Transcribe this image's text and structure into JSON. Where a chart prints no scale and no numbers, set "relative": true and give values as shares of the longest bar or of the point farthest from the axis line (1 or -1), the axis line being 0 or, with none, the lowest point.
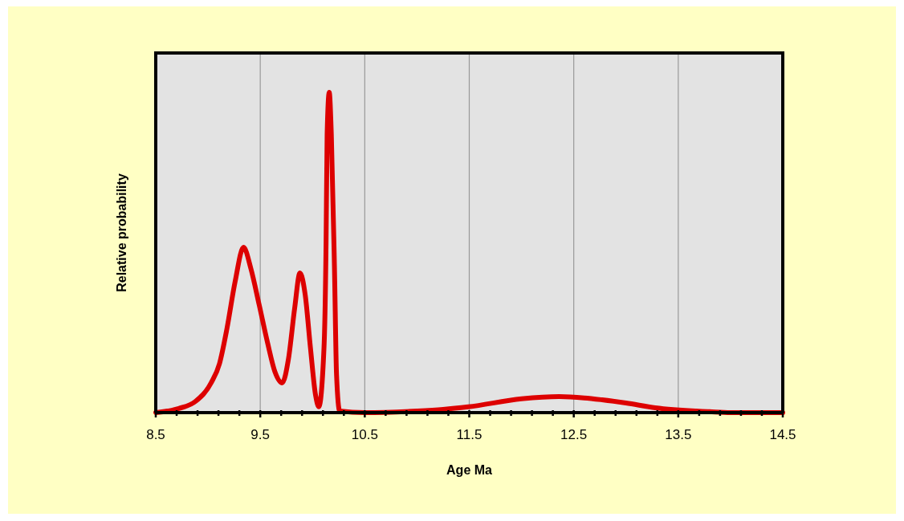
{
  "chart_data": {
    "type": "line",
    "relative": true,
    "xlabel": "Age Ma",
    "ylabel": "Relative probability",
    "xlim": [
      8.5,
      14.5
    ],
    "xticks": [
      8.5,
      {
        "value": 8.7,
        "label": null
      },
      {
        "value": 8.9,
        "label": null
      },
      {
        "value": 9.1,
        "label": null
      },
      {
        "value": 9.3,
        "label": null
      },
      9.5,
      {
        "value": 9.7,
        "label": null
      },
      {
        "value": 9.9,
        "label": null
      },
      {
        "value": 10.1,
        "label": null
      },
      {
        "value": 10.3,
        "label": null
      },
      10.5,
      {
        "value": 10.7,
        "label": null
      },
      {
        "value": 10.9,
        "label": null
      },
      {
        "value": 11.1,
        "label": null
      },
      {
        "value": 11.3,
        "label": null
      },
      11.5,
      {
        "value": 11.7,
        "label": null
      },
      {
        "value": 11.9,
        "label": null
      },
      {
        "value": 12.1,
        "label": null
      },
      {
        "value": 12.3,
        "label": null
      },
      12.5,
      {
        "value": 12.7,
        "label": null
      },
      {
        "value": 12.9,
        "label": null
      },
      {
        "value": 13.1,
        "label": null
      },
      {
        "value": 13.3,
        "label": null
      },
      13.5,
      {
        "value": 13.7,
        "label": null
      },
      {
        "value": 13.9,
        "label": null
      },
      {
        "value": 14.1,
        "label": null
      },
      {
        "value": 14.3,
        "label": null
      },
      14.5
    ],
    "grid": "x",
    "marker": "none",
    "line_style": "solid",
    "series": [
      {
        "color": "#dd0000",
        "x": [
          8.5,
          8.72,
          8.88,
          9.03,
          9.11,
          9.18,
          9.26,
          9.34,
          9.41,
          9.49,
          9.57,
          9.64,
          9.71,
          9.77,
          9.83,
          9.88,
          9.93,
          9.98,
          10.03,
          10.06,
          10.11,
          10.13,
          10.14,
          10.16,
          10.18,
          10.21,
          10.23,
          10.26,
          10.5,
          11.0,
          11.25,
          11.49,
          12.0,
          12.36,
          12.6,
          12.77,
          13.0,
          13.28,
          13.8,
          14.0,
          14.5
        ],
        "values": [
          0,
          0.013,
          0.035,
          0.093,
          0.153,
          0.26,
          0.41,
          0.516,
          0.45,
          0.336,
          0.218,
          0.128,
          0.093,
          0.168,
          0.328,
          0.436,
          0.368,
          0.203,
          0.053,
          0.018,
          0.203,
          0.536,
          0.87,
          1.0,
          0.87,
          0.454,
          0.118,
          0.005,
          0,
          0.005,
          0.01,
          0.018,
          0.043,
          0.05,
          0.046,
          0.04,
          0.03,
          0.015,
          0.003,
          0,
          0
        ]
      }
    ]
  }
}
